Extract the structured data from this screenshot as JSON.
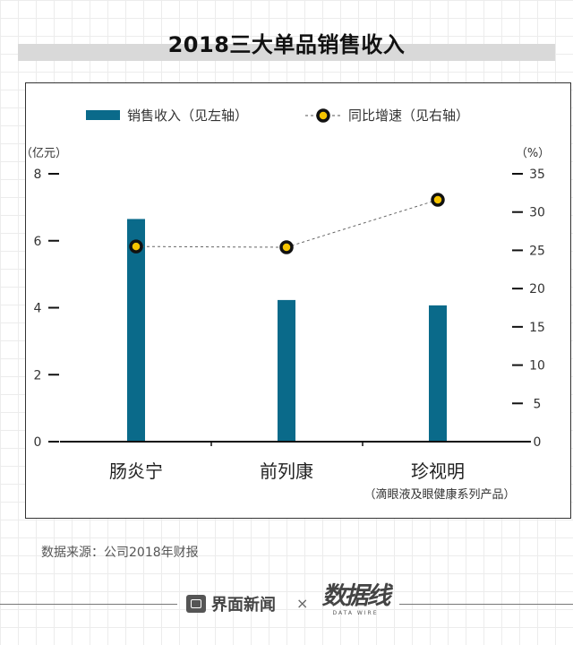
{
  "title": "2018三大单品销售收入",
  "source": "数据来源：公司2018年财报",
  "footer": {
    "brand": "界面新闻",
    "times": "×",
    "partner": "数据线",
    "partner_sub": "DATA WIRE"
  },
  "colors": {
    "bar": "#0a6a8a",
    "marker_fill": "#f5c400",
    "marker_stroke": "#111111",
    "axis": "#111111"
  },
  "chart_data": {
    "type": "bar+line",
    "categories": [
      "肠炎宁",
      "前列康",
      "珍视明"
    ],
    "category_note": "（滴眼液及眼健康系列产品）",
    "series": [
      {
        "name": "销售收入（见左轴）",
        "type": "bar",
        "axis": "left",
        "values": [
          6.65,
          4.23,
          4.07
        ]
      },
      {
        "name": "同比增速（见右轴）",
        "type": "line",
        "axis": "right",
        "values": [
          25.5,
          25.4,
          31.6
        ]
      }
    ],
    "left_axis": {
      "unit_label": "（亿元）",
      "ylim": [
        0,
        8
      ],
      "ticks": [
        "0",
        "2",
        "4",
        "6",
        "8"
      ]
    },
    "right_axis": {
      "unit_label": "（%）",
      "ylim": [
        0,
        35
      ],
      "ticks": [
        "0",
        "5",
        "10",
        "15",
        "20",
        "25",
        "30",
        "35"
      ]
    },
    "legend_position": "top-center",
    "grid": false
  }
}
